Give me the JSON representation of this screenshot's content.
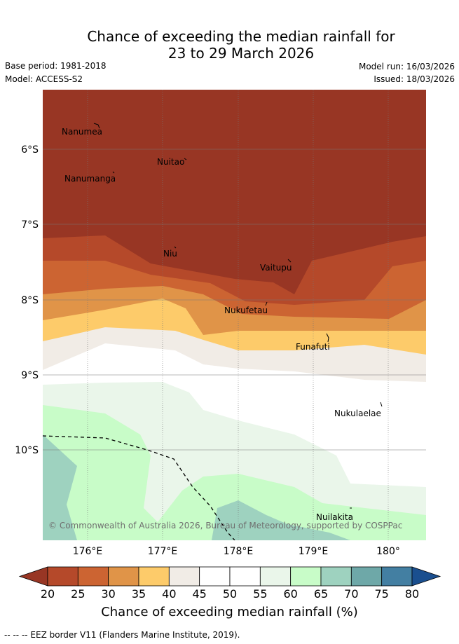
{
  "header": {
    "title_line1": "Chance of exceeding the median rainfall for",
    "title_line2": "23 to 29 March 2026",
    "base_period": "Base period: 1981-2018",
    "model": "Model: ACCESS-S2",
    "model_run": "Model run: 16/03/2026",
    "issued": "Issued: 18/03/2026"
  },
  "map": {
    "lat_labels": [
      "6°S",
      "7°S",
      "8°S",
      "9°S",
      "10°S"
    ],
    "lon_labels": [
      "176°E",
      "177°E",
      "178°E",
      "179°E",
      "180°"
    ],
    "islands": [
      "Nanumea",
      "Nuitao",
      "Nanumanga",
      "Niu",
      "Vaitupu",
      "Nukufetau",
      "Funafuti",
      "Nukulaelae",
      "Nuilakita"
    ],
    "copyright": "© Commonwealth of Australia 2026, Bureau of Meteorology, supported by COSPPac"
  },
  "colorbar": {
    "ticks": [
      "20",
      "25",
      "30",
      "35",
      "40",
      "45",
      "50",
      "55",
      "60",
      "65",
      "70",
      "75",
      "80"
    ],
    "colors": [
      "#983624",
      "#b5492a",
      "#cc6432",
      "#e09448",
      "#fdcb6a",
      "#f1ece6",
      "#ffffff",
      "#ffffff",
      "#eaf6ea",
      "#c8fcc8",
      "#9ed2bf",
      "#6ea8a8",
      "#437fa2",
      "#1a4f8f"
    ],
    "label": "Chance of exceeding median rainfall (%)"
  },
  "footer": {
    "eez_note": "-- -- -- EEZ border V11 (Flanders Marine Institute, 2019)."
  }
}
